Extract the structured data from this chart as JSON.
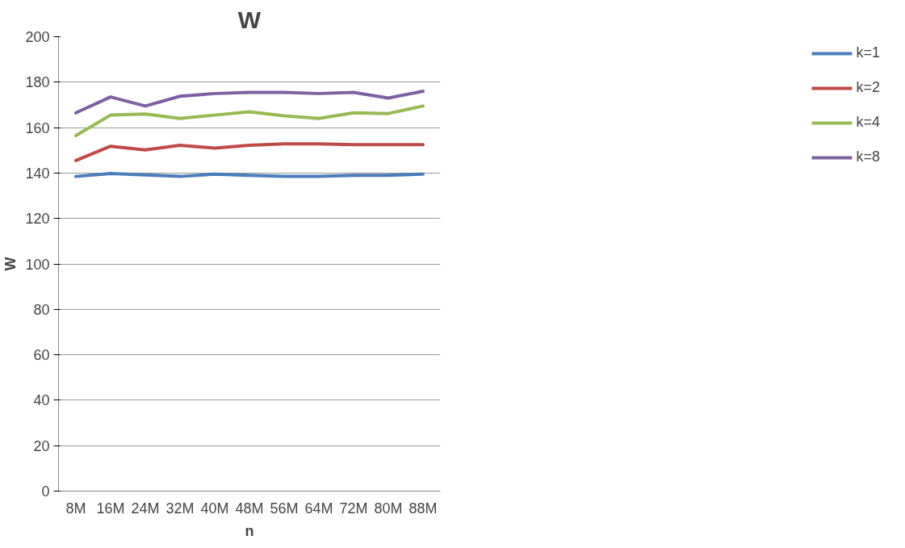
{
  "chart_data": {
    "type": "line",
    "title": "W",
    "xlabel": "n",
    "ylabel": "W",
    "categories": [
      "8M",
      "16M",
      "24M",
      "32M",
      "40M",
      "48M",
      "56M",
      "64M",
      "72M",
      "80M",
      "88M"
    ],
    "series": [
      {
        "name": "k=1",
        "color": "#4a7ebb",
        "values": [
          138.5,
          139.8,
          139.2,
          138.5,
          139.5,
          139,
          138.5,
          138.5,
          139,
          139,
          139.5
        ]
      },
      {
        "name": "k=2",
        "color": "#be4b48",
        "values": [
          145.5,
          151.8,
          150.2,
          152.2,
          151,
          152.2,
          152.8,
          152.8,
          152.5,
          152.5,
          152.5
        ]
      },
      {
        "name": "k=4",
        "color": "#98b954",
        "values": [
          156.5,
          165.5,
          166,
          164,
          165.5,
          167,
          165.2,
          164,
          166.5,
          166.2,
          169.5
        ]
      },
      {
        "name": "k=8",
        "color": "#7d60a0",
        "values": [
          166.5,
          173.5,
          169.5,
          173.8,
          175,
          175.5,
          175.5,
          175,
          175.5,
          173,
          176
        ]
      }
    ],
    "ylim": [
      0,
      200
    ],
    "yticks": [
      0,
      20,
      40,
      60,
      80,
      100,
      120,
      140,
      160,
      180,
      200
    ],
    "grid": "y",
    "legend": "right",
    "marker": "none",
    "line_style": "solid"
  }
}
